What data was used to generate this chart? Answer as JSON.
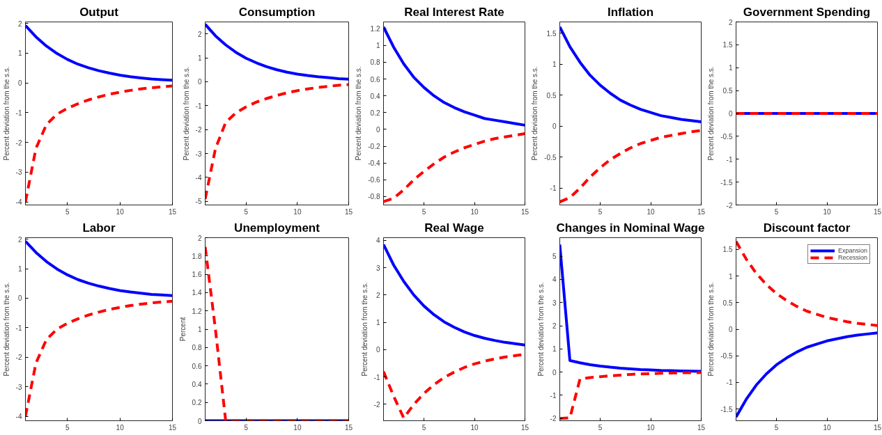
{
  "chart_data": [
    {
      "type": "line",
      "title": "Output",
      "ylabel": "Percent deviation from the s.s.",
      "x": [
        1,
        2,
        3,
        4,
        5,
        6,
        7,
        8,
        9,
        10,
        11,
        12,
        13,
        14,
        15
      ],
      "xlim": [
        1,
        15
      ],
      "xticks": [
        5,
        10,
        15
      ],
      "ylim": [
        -4.1,
        2.05
      ],
      "yticks": [
        -4,
        -3,
        -2,
        -1,
        0,
        1,
        2
      ],
      "grid": false,
      "legend": false,
      "series": [
        {
          "color": "#0000ff",
          "line_style": "solid",
          "values": [
            1.93,
            1.55,
            1.24,
            0.99,
            0.79,
            0.63,
            0.51,
            0.41,
            0.33,
            0.26,
            0.21,
            0.17,
            0.13,
            0.11,
            0.09
          ]
        },
        {
          "color": "#ff0000",
          "line_style": "dashed",
          "values": [
            -4.0,
            -2.2,
            -1.4,
            -1.05,
            -0.85,
            -0.7,
            -0.57,
            -0.47,
            -0.38,
            -0.31,
            -0.25,
            -0.2,
            -0.16,
            -0.13,
            -0.1
          ]
        }
      ]
    },
    {
      "type": "line",
      "title": "Consumption",
      "ylabel": "Percent deviation from the s.s.",
      "x": [
        1,
        2,
        3,
        4,
        5,
        6,
        7,
        8,
        9,
        10,
        11,
        12,
        13,
        14,
        15
      ],
      "xlim": [
        1,
        15
      ],
      "xticks": [
        5,
        10,
        15
      ],
      "ylim": [
        -5.15,
        2.5
      ],
      "yticks": [
        -5,
        -4,
        -3,
        -2,
        -1,
        0,
        1,
        2
      ],
      "grid": false,
      "legend": false,
      "series": [
        {
          "color": "#0000ff",
          "line_style": "solid",
          "values": [
            2.4,
            1.92,
            1.54,
            1.23,
            0.98,
            0.79,
            0.63,
            0.5,
            0.4,
            0.32,
            0.26,
            0.21,
            0.17,
            0.13,
            0.11
          ]
        },
        {
          "color": "#ff0000",
          "line_style": "dashed",
          "values": [
            -4.9,
            -2.8,
            -1.7,
            -1.3,
            -1.05,
            -0.85,
            -0.7,
            -0.57,
            -0.46,
            -0.37,
            -0.3,
            -0.24,
            -0.19,
            -0.15,
            -0.12
          ]
        }
      ]
    },
    {
      "type": "line",
      "title": "Real Interest Rate",
      "ylabel": "Percent deviation from the s.s.",
      "x": [
        1,
        2,
        3,
        4,
        5,
        6,
        7,
        8,
        9,
        10,
        11,
        12,
        13,
        14,
        15
      ],
      "xlim": [
        1,
        15
      ],
      "xticks": [
        5,
        10,
        15
      ],
      "ylim": [
        -0.9,
        1.28
      ],
      "yticks": [
        -0.8,
        -0.6,
        -0.4,
        -0.2,
        0,
        0.2,
        0.4,
        0.6,
        0.8,
        1,
        1.2
      ],
      "grid": false,
      "legend": false,
      "series": [
        {
          "color": "#0000ff",
          "line_style": "solid",
          "values": [
            1.22,
            0.98,
            0.78,
            0.62,
            0.5,
            0.4,
            0.32,
            0.26,
            0.21,
            0.17,
            0.13,
            0.11,
            0.09,
            0.07,
            0.05
          ]
        },
        {
          "color": "#ff0000",
          "line_style": "dashed",
          "values": [
            -0.86,
            -0.82,
            -0.72,
            -0.6,
            -0.5,
            -0.41,
            -0.33,
            -0.27,
            -0.22,
            -0.18,
            -0.14,
            -0.11,
            -0.09,
            -0.07,
            -0.05
          ]
        }
      ]
    },
    {
      "type": "line",
      "title": "Inflation",
      "ylabel": "Percent deviation from the s.s.",
      "x": [
        1,
        2,
        3,
        4,
        5,
        6,
        7,
        8,
        9,
        10,
        11,
        12,
        13,
        14,
        15
      ],
      "xlim": [
        1,
        15
      ],
      "xticks": [
        5,
        10,
        15
      ],
      "ylim": [
        -1.27,
        1.68
      ],
      "yticks": [
        -1,
        -0.5,
        0,
        0.5,
        1,
        1.5
      ],
      "grid": false,
      "legend": false,
      "series": [
        {
          "color": "#0000ff",
          "line_style": "solid",
          "values": [
            1.6,
            1.28,
            1.03,
            0.82,
            0.66,
            0.53,
            0.42,
            0.34,
            0.27,
            0.22,
            0.17,
            0.14,
            0.11,
            0.09,
            0.07
          ]
        },
        {
          "color": "#ff0000",
          "line_style": "dashed",
          "values": [
            -1.22,
            -1.15,
            -1.0,
            -0.82,
            -0.67,
            -0.54,
            -0.44,
            -0.35,
            -0.28,
            -0.23,
            -0.18,
            -0.15,
            -0.12,
            -0.09,
            -0.07
          ]
        }
      ]
    },
    {
      "type": "line",
      "title": "Government Spending",
      "ylabel": "Percent deviation from the s.s.",
      "x": [
        1,
        2,
        3,
        4,
        5,
        6,
        7,
        8,
        9,
        10,
        11,
        12,
        13,
        14,
        15
      ],
      "xlim": [
        1,
        15
      ],
      "xticks": [
        5,
        10,
        15
      ],
      "ylim": [
        -2,
        2
      ],
      "yticks": [
        -2,
        -1.5,
        -1,
        -0.5,
        0,
        0.5,
        1,
        1.5,
        2
      ],
      "grid": false,
      "legend": false,
      "series": [
        {
          "color": "#0000ff",
          "line_style": "solid",
          "values": [
            0,
            0,
            0,
            0,
            0,
            0,
            0,
            0,
            0,
            0,
            0,
            0,
            0,
            0,
            0
          ]
        },
        {
          "color": "#ff0000",
          "line_style": "dashed",
          "values": [
            0,
            0,
            0,
            0,
            0,
            0,
            0,
            0,
            0,
            0,
            0,
            0,
            0,
            0,
            0
          ]
        }
      ]
    },
    {
      "type": "line",
      "title": "Labor",
      "ylabel": "Percent deviation from the s.s.",
      "x": [
        1,
        2,
        3,
        4,
        5,
        6,
        7,
        8,
        9,
        10,
        11,
        12,
        13,
        14,
        15
      ],
      "xlim": [
        1,
        15
      ],
      "xticks": [
        5,
        10,
        15
      ],
      "ylim": [
        -4.15,
        2.05
      ],
      "yticks": [
        -4,
        -3,
        -2,
        -1,
        0,
        1,
        2
      ],
      "grid": false,
      "legend": false,
      "series": [
        {
          "color": "#0000ff",
          "line_style": "solid",
          "values": [
            1.93,
            1.55,
            1.24,
            0.99,
            0.79,
            0.63,
            0.51,
            0.41,
            0.33,
            0.26,
            0.21,
            0.17,
            0.13,
            0.11,
            0.09
          ]
        },
        {
          "color": "#ff0000",
          "line_style": "dashed",
          "values": [
            -4.0,
            -2.2,
            -1.4,
            -1.05,
            -0.85,
            -0.7,
            -0.57,
            -0.47,
            -0.38,
            -0.31,
            -0.25,
            -0.2,
            -0.16,
            -0.13,
            -0.1
          ]
        }
      ]
    },
    {
      "type": "line",
      "title": "Unemployment",
      "ylabel": "Percent",
      "x": [
        1,
        2,
        3,
        4,
        5,
        6,
        7,
        8,
        9,
        10,
        11,
        12,
        13,
        14,
        15
      ],
      "xlim": [
        1,
        15
      ],
      "xticks": [
        5,
        10,
        15
      ],
      "ylim": [
        0,
        2
      ],
      "yticks": [
        0,
        0.2,
        0.4,
        0.6,
        0.8,
        1,
        1.2,
        1.4,
        1.6,
        1.8,
        2
      ],
      "grid": false,
      "legend": false,
      "series": [
        {
          "color": "#0000ff",
          "line_style": "solid",
          "values": [
            0,
            0,
            0,
            0,
            0,
            0,
            0,
            0,
            0,
            0,
            0,
            0,
            0,
            0,
            0
          ]
        },
        {
          "color": "#ff0000",
          "line_style": "dashed",
          "values": [
            1.9,
            1.0,
            0,
            0,
            0,
            0,
            0,
            0,
            0,
            0,
            0,
            0,
            0,
            0,
            0
          ]
        }
      ]
    },
    {
      "type": "line",
      "title": "Real Wage",
      "ylabel": "Percent deviation from the s.s.",
      "x": [
        1,
        2,
        3,
        4,
        5,
        6,
        7,
        8,
        9,
        10,
        11,
        12,
        13,
        14,
        15
      ],
      "xlim": [
        1,
        15
      ],
      "xticks": [
        5,
        10,
        15
      ],
      "ylim": [
        -2.6,
        4.1
      ],
      "yticks": [
        -2,
        -1,
        0,
        1,
        2,
        3,
        4
      ],
      "grid": false,
      "legend": false,
      "series": [
        {
          "color": "#0000ff",
          "line_style": "solid",
          "values": [
            3.85,
            3.1,
            2.5,
            2.0,
            1.6,
            1.28,
            1.02,
            0.82,
            0.65,
            0.52,
            0.42,
            0.34,
            0.27,
            0.22,
            0.17
          ]
        },
        {
          "color": "#ff0000",
          "line_style": "dashed",
          "values": [
            -0.8,
            -1.7,
            -2.5,
            -2.0,
            -1.6,
            -1.28,
            -1.02,
            -0.82,
            -0.65,
            -0.52,
            -0.42,
            -0.34,
            -0.27,
            -0.22,
            -0.17
          ]
        }
      ]
    },
    {
      "type": "line",
      "title": "Changes in Nominal Wage",
      "ylabel": "Percent deviation from the s.s.",
      "x": [
        1,
        2,
        3,
        4,
        5,
        6,
        7,
        8,
        9,
        10,
        11,
        12,
        13,
        14,
        15
      ],
      "xlim": [
        1,
        15
      ],
      "xticks": [
        5,
        10,
        15
      ],
      "ylim": [
        -2.1,
        5.8
      ],
      "yticks": [
        -2,
        -1,
        0,
        1,
        2,
        3,
        4,
        5
      ],
      "grid": false,
      "legend": false,
      "series": [
        {
          "color": "#0000ff",
          "line_style": "solid",
          "values": [
            5.5,
            0.5,
            0.4,
            0.32,
            0.26,
            0.21,
            0.17,
            0.14,
            0.11,
            0.09,
            0.07,
            0.06,
            0.05,
            0.04,
            0.03
          ]
        },
        {
          "color": "#ff0000",
          "line_style": "dashed",
          "values": [
            -2.0,
            -1.98,
            -0.3,
            -0.24,
            -0.2,
            -0.16,
            -0.13,
            -0.1,
            -0.08,
            -0.07,
            -0.05,
            -0.04,
            -0.03,
            -0.03,
            -0.02
          ]
        }
      ]
    },
    {
      "type": "line",
      "title": "Discount factor",
      "ylabel": "Percent deviation from the s.s.",
      "x": [
        1,
        2,
        3,
        4,
        5,
        6,
        7,
        8,
        9,
        10,
        11,
        12,
        13,
        14,
        15
      ],
      "xlim": [
        1,
        15
      ],
      "xticks": [
        5,
        10,
        15
      ],
      "ylim": [
        -1.72,
        1.72
      ],
      "yticks": [
        -1.5,
        -1,
        -0.5,
        0,
        0.5,
        1,
        1.5
      ],
      "grid": false,
      "legend": "top right",
      "series": [
        {
          "name": "Expansion",
          "color": "#0000ff",
          "line_style": "solid",
          "values": [
            -1.65,
            -1.32,
            -1.05,
            -0.84,
            -0.67,
            -0.54,
            -0.43,
            -0.34,
            -0.28,
            -0.22,
            -0.18,
            -0.14,
            -0.11,
            -0.09,
            -0.07
          ]
        },
        {
          "name": "Recession",
          "color": "#ff0000",
          "line_style": "dashed",
          "values": [
            1.65,
            1.32,
            1.05,
            0.84,
            0.67,
            0.54,
            0.43,
            0.34,
            0.28,
            0.22,
            0.18,
            0.14,
            0.11,
            0.09,
            0.07
          ]
        }
      ]
    }
  ]
}
